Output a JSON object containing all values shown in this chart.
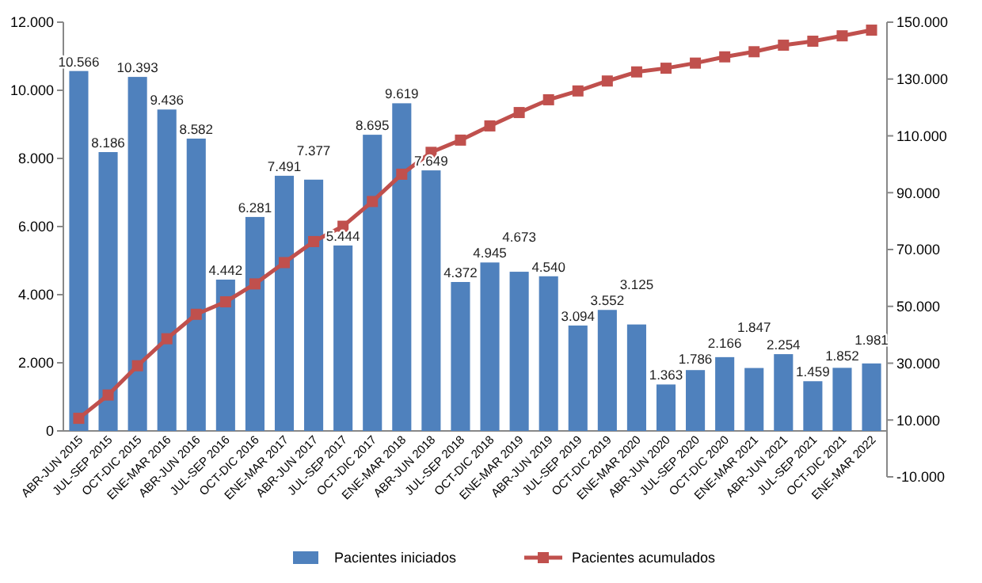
{
  "chart_data": {
    "type": "bar",
    "categories": [
      "ABR-JUN 2015",
      "JUL-SEP 2015",
      "OCT-DIC 2015",
      "ENE-MAR 2016",
      "ABR-JUN 2016",
      "JUL-SEP 2016",
      "OCT-DIC 2016",
      "ENE-MAR 2017",
      "ABR-JUN 2017",
      "JUL-SEP 2017",
      "OCT-DIC 2017",
      "ENE-MAR 2018",
      "ABR-JUN 2018",
      "JUL-SEP 2018",
      "OCT-DIC 2018",
      "ENE-MAR 2019",
      "ABR-JUN 2019",
      "JUL-SEP 2019",
      "OCT-DIC 2019",
      "ENE-MAR 2020",
      "ABR-JUN 2020",
      "JUL-SEP 2020",
      "OCT-DIC 2020",
      "ENE-MAR 2021",
      "ABR-JUN 2021",
      "JUL-SEP 2021",
      "OCT-DIC 2021",
      "ENE-MAR 2022"
    ],
    "series": [
      {
        "name": "Pacientes iniciados",
        "color": "#4f81bd",
        "values": [
          10566,
          8186,
          10393,
          9436,
          8582,
          4442,
          6281,
          7491,
          7377,
          5444,
          8695,
          9619,
          7649,
          4372,
          4945,
          4673,
          4540,
          3094,
          3552,
          3125,
          1363,
          1786,
          2166,
          1847,
          2254,
          1459,
          1852,
          1981
        ],
        "value_labels": [
          "10.566",
          "8.186",
          "10.393",
          "9.436",
          "8.582",
          "4.442",
          "6.281",
          "7.491",
          "7.377",
          "5.444",
          "8.695",
          "9.619",
          "7.649",
          "4.372",
          "4.945",
          "4.673",
          "4.540",
          "3.094",
          "3.552",
          "3.125",
          "1.363",
          "1.786",
          "2.166",
          "1.847",
          "2.254",
          "1.459",
          "1.852",
          "1.981"
        ]
      },
      {
        "name": "Pacientes acumulados",
        "type": "line",
        "axis": "y2",
        "color": "#c0504d",
        "marker": "square",
        "values": [
          10600,
          18800,
          29100,
          38600,
          47200,
          51600,
          57900,
          65400,
          72800,
          78200,
          86900,
          96500,
          104200,
          108500,
          113500,
          118200,
          122700,
          125800,
          129300,
          132500,
          133800,
          135600,
          137800,
          139600,
          141900,
          143300,
          145200,
          147200
        ]
      }
    ],
    "ylim": [
      0,
      12000
    ],
    "yticks": [
      0,
      {
        "value": 2000,
        "label": "2.000"
      },
      {
        "value": 4000,
        "label": "4.000"
      },
      {
        "value": 6000,
        "label": "6.000"
      },
      {
        "value": 8000,
        "label": "8.000"
      },
      {
        "value": 10000,
        "label": "10.000"
      },
      {
        "value": 12000,
        "label": "12.000"
      }
    ],
    "y2lim": [
      -10000,
      150000
    ],
    "y2ticks": [
      {
        "value": -10000,
        "label": "-10.000"
      },
      {
        "value": 10000,
        "label": "10.000"
      },
      {
        "value": 30000,
        "label": "30.000"
      },
      {
        "value": 50000,
        "label": "50.000"
      },
      {
        "value": 70000,
        "label": "70.000"
      },
      {
        "value": 90000,
        "label": "90.000"
      },
      {
        "value": 110000,
        "label": "110.000"
      },
      {
        "value": 130000,
        "label": "130.000"
      },
      {
        "value": 150000,
        "label": "150.000"
      }
    ],
    "legend": "bottom"
  }
}
